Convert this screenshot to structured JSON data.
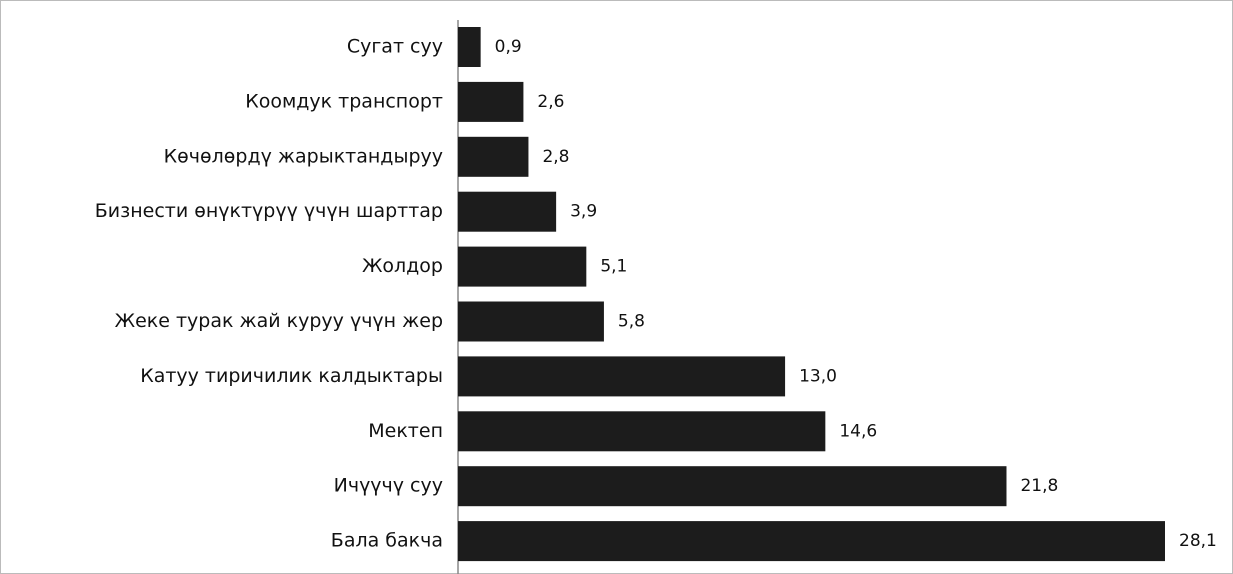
{
  "chart_data": {
    "type": "bar",
    "orientation": "horizontal",
    "categories": [
      "Сугат суу",
      "Коомдук транспорт",
      "Көчөлөрдү жарыктандыруу",
      "Бизнести өнүктүрүү үчүн шарттар",
      "Жолдор",
      "Жеке турак жай куруу үчүн жер",
      "Катуу тиричилик калдыктары",
      "Мектеп",
      "Ичүүчү суу",
      "Бала бакча"
    ],
    "values": [
      0.9,
      2.6,
      2.8,
      3.9,
      5.1,
      5.8,
      13.0,
      14.6,
      21.8,
      28.1
    ],
    "value_labels": [
      "0,9",
      "2,6",
      "2,8",
      "3,9",
      "5,1",
      "5,8",
      "13,0",
      "14,6",
      "21,8",
      "28,1"
    ],
    "color": "#1c1c1c"
  }
}
